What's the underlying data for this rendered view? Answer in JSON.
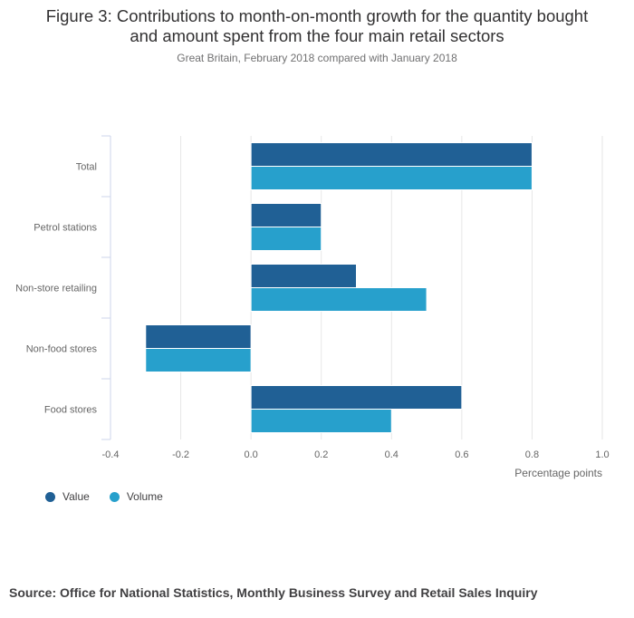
{
  "header": {
    "title_line1": "Figure 3: Contributions to month-on-month growth for the quantity bought",
    "title_line2": "and amount spent from the four main retail sectors",
    "subtitle": "Great Britain, February 2018 compared with January 2018"
  },
  "footer": {
    "source": "Source: Office for National Statistics, Monthly Business Survey and Retail Sales Inquiry"
  },
  "colors": {
    "value": "#206095",
    "volume": "#27a0cc",
    "grid": "#e6e6e6",
    "axis": "#ccd6eb"
  },
  "chart_data": {
    "type": "bar",
    "orientation": "horizontal",
    "categories": [
      "Total",
      "Petrol stations",
      "Non-store retailing",
      "Non-food stores",
      "Food stores"
    ],
    "series": [
      {
        "name": "Value",
        "values": [
          0.8,
          0.2,
          0.3,
          -0.3,
          0.6
        ]
      },
      {
        "name": "Volume",
        "values": [
          0.8,
          0.2,
          0.5,
          -0.3,
          0.4
        ]
      }
    ],
    "xlim": [
      -0.4,
      1.0
    ],
    "xticks": [
      "-0.4",
      "-0.2",
      "0.0",
      "0.2",
      "0.4",
      "0.6",
      "0.8",
      "1.0"
    ],
    "xlabel": "Percentage points",
    "grid": true,
    "legend": "bottom-left"
  }
}
